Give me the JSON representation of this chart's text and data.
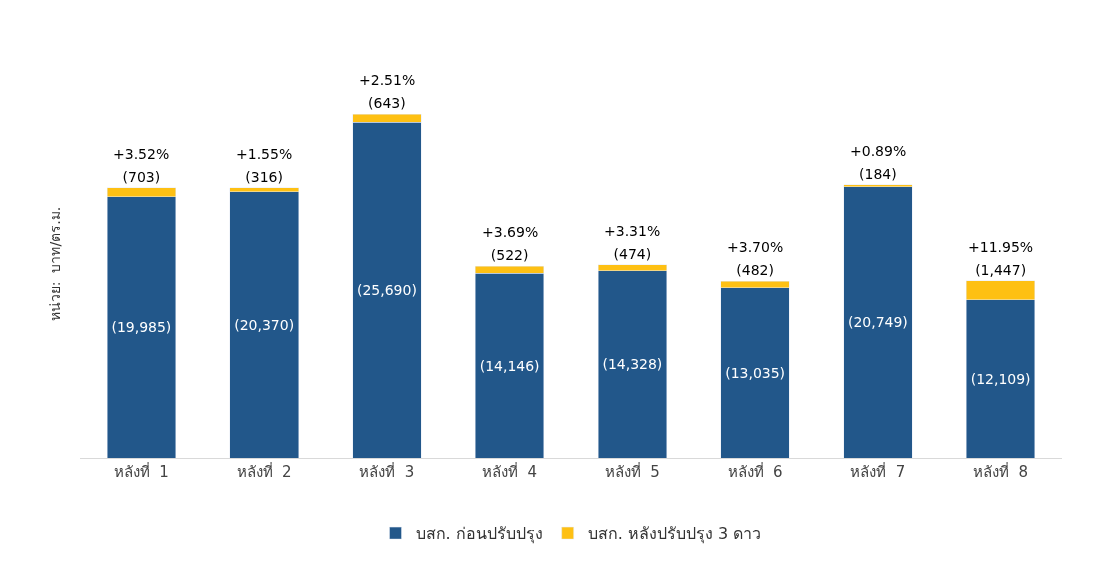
{
  "chart_data": {
    "type": "bar",
    "stacked": true,
    "ylabel": "หน่วย:  บาท/ตร.ม.",
    "categories": [
      "หลังที่  1",
      "หลังที่  2",
      "หลังที่  3",
      "หลังที่  4",
      "หลังที่  5",
      "หลังที่  6",
      "หลังที่  7",
      "หลังที่  8"
    ],
    "series": [
      {
        "name": "บสก. ก่อนปรับปรุง",
        "color": "#22578a",
        "values": [
          19985,
          20370,
          25690,
          14146,
          14328,
          13035,
          20749,
          12109
        ],
        "value_labels": [
          "(19,985)",
          "(20,370)",
          "(25,690)",
          "(14,146)",
          "(14,328)",
          "(13,035)",
          "(20,749)",
          "(12,109)"
        ]
      },
      {
        "name": "บสก. หลังปรับปรุง 3 ดาว",
        "color": "#fec013",
        "values": [
          703,
          316,
          643,
          522,
          474,
          482,
          184,
          1447
        ],
        "value_labels": [
          "(703)",
          "(316)",
          "(643)",
          "(522)",
          "(474)",
          "(482)",
          "(184)",
          "(1,447)"
        ]
      }
    ],
    "annotations": [
      {
        "text": "+3.52%",
        "x": "หลังที่  1",
        "y": 20688
      },
      {
        "text": "+1.55%",
        "x": "หลังที่  2",
        "y": 20686
      },
      {
        "text": "+2.51%",
        "x": "หลังที่  3",
        "y": 26333
      },
      {
        "text": "+3.69%",
        "x": "หลังที่  4",
        "y": 14668
      },
      {
        "text": "+3.31%",
        "x": "หลังที่  5",
        "y": 14802
      },
      {
        "text": "+3.70%",
        "x": "หลังที่  6",
        "y": 13517
      },
      {
        "text": "+0.89%",
        "x": "หลังที่  7",
        "y": 20933
      },
      {
        "text": "+11.95%",
        "x": "หลังที่  8",
        "y": 13556
      }
    ],
    "legend": "bottom"
  }
}
